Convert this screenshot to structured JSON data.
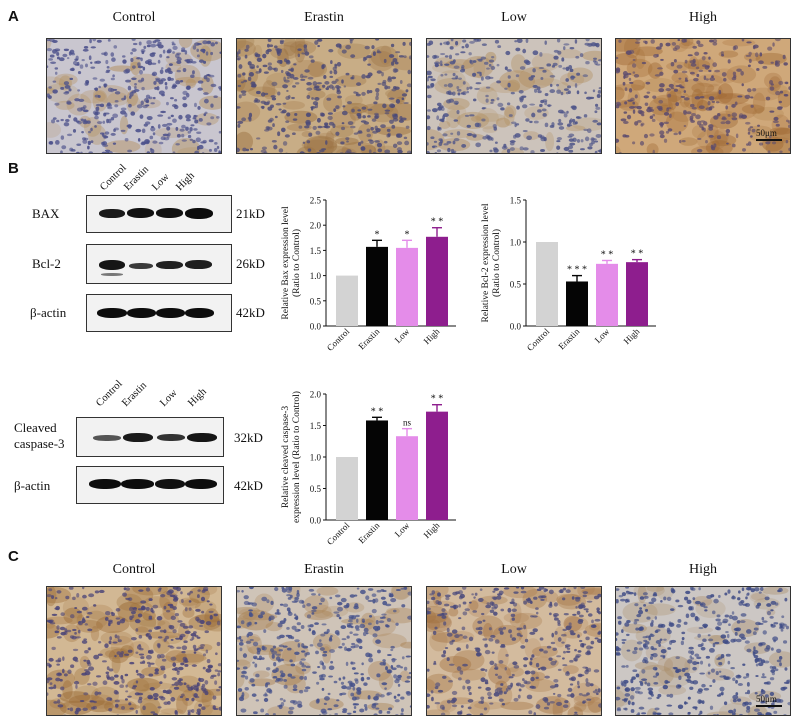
{
  "panels": {
    "A": "A",
    "B": "B",
    "C": "C"
  },
  "panelA": {
    "titles": [
      "Control",
      "Erastin",
      "Low",
      "High"
    ],
    "scale_label": "50μm"
  },
  "panelC": {
    "titles": [
      "Control",
      "Erastin",
      "Low",
      "High"
    ],
    "scale_label": "50μm"
  },
  "blot1": {
    "lanes": [
      "Control",
      "Erastin",
      "Low",
      "High"
    ],
    "rows": [
      {
        "label": "BAX",
        "kd": "21kD"
      },
      {
        "label": "Bcl-2",
        "kd": "26kD"
      },
      {
        "label": "β-actin",
        "kd": "42kD"
      }
    ]
  },
  "blot2": {
    "lanes": [
      "Control",
      "Erastin",
      "Low",
      "High"
    ],
    "rows": [
      {
        "label": "Cleaved caspase-3",
        "label_line1": "Cleaved",
        "label_line2": "caspase-3",
        "kd": "32kD"
      },
      {
        "label": "β-actin",
        "kd": "42kD"
      }
    ]
  },
  "chart_data": [
    {
      "type": "bar",
      "ylabel": "Relative Bax expression level (Ratio to Control)",
      "ylabel_line1": "Relative Bax expression level",
      "ylabel_line2": "(Ratio to Control)",
      "categories": [
        "Control",
        "Erastin",
        "Low",
        "High"
      ],
      "values": [
        1.0,
        1.57,
        1.55,
        1.77
      ],
      "errors": [
        0,
        0.13,
        0.15,
        0.18
      ],
      "significance": [
        "",
        "*",
        "*",
        "**"
      ],
      "ylim": [
        0,
        2.5
      ],
      "yticks": [
        "0.0",
        "0.5",
        "1.0",
        "1.5",
        "2.0",
        "2.5"
      ],
      "colors": [
        "#d3d3d3",
        "#050505",
        "#e48ce9",
        "#8e1e8e"
      ]
    },
    {
      "type": "bar",
      "ylabel": "Relative Bcl-2 expression level (Ratio to Control)",
      "ylabel_line1": "Relative Bcl-2 expression level",
      "ylabel_line2": "(Ratio to Control)",
      "categories": [
        "Control",
        "Erastin",
        "Low",
        "High"
      ],
      "values": [
        1.0,
        0.53,
        0.74,
        0.76
      ],
      "errors": [
        0,
        0.07,
        0.04,
        0.03
      ],
      "significance": [
        "",
        "***",
        "**",
        "**"
      ],
      "ylim": [
        0,
        1.5
      ],
      "yticks": [
        "0.0",
        "0.5",
        "1.0",
        "1.5"
      ],
      "colors": [
        "#d3d3d3",
        "#050505",
        "#e48ce9",
        "#8e1e8e"
      ]
    },
    {
      "type": "bar",
      "ylabel": "Relative cleaved caspase-3 expression level (Ratio to Control)",
      "ylabel_line1": "Relative cleaved caspase-3",
      "ylabel_line2": "expression level (Ratio to Control)",
      "categories": [
        "Control",
        "Erastin",
        "Low",
        "High"
      ],
      "values": [
        1.0,
        1.58,
        1.33,
        1.72
      ],
      "errors": [
        0,
        0.05,
        0.12,
        0.11
      ],
      "significance": [
        "",
        "**",
        "ns",
        "**"
      ],
      "ylim": [
        0,
        2.0
      ],
      "yticks": [
        "0.0",
        "0.5",
        "1.0",
        "1.5",
        "2.0"
      ],
      "colors": [
        "#d3d3d3",
        "#050505",
        "#e48ce9",
        "#8e1e8e"
      ]
    }
  ]
}
